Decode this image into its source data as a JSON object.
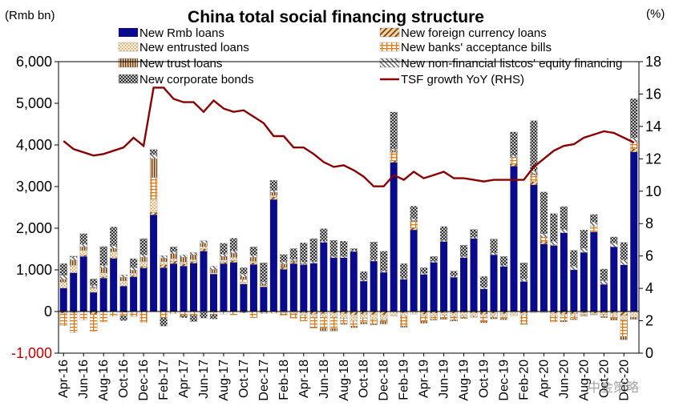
{
  "chart_data": {
    "type": "bar",
    "title": "China total social financing structure",
    "left_unit": "(Rmb bn)",
    "right_unit": "(%)",
    "ylim": [
      -1000,
      6000
    ],
    "y2lim": [
      0,
      18
    ],
    "yticks": [
      "6,000",
      "5,000",
      "4,000",
      "3,000",
      "2,000",
      "1,000",
      "0",
      "-1,000"
    ],
    "y2ticks": [
      "18",
      "16",
      "14",
      "12",
      "10",
      "8",
      "6",
      "4",
      "2",
      "0"
    ],
    "x_labels": [
      "Apr-16",
      "Jun-16",
      "Aug-16",
      "Oct-16",
      "Dec-16",
      "Feb-17",
      "Apr-17",
      "Jun-17",
      "Aug-17",
      "Oct-17",
      "Dec-17",
      "Feb-18",
      "Apr-18",
      "Jun-18",
      "Aug-18",
      "Oct-18",
      "Dec-18",
      "Feb-19",
      "Apr-19",
      "Jun-19",
      "Aug-19",
      "Oct-19",
      "Dec-19",
      "Feb-20",
      "Apr-20",
      "Jun-20",
      "Aug-20",
      "Oct-20",
      "Dec-20"
    ],
    "series": [
      {
        "name": "New Rmb loans",
        "color": "#0a0a8c",
        "pattern": "solid",
        "values": [
          560,
          930,
          1320,
          460,
          800,
          1270,
          610,
          830,
          1040,
          2320,
          1050,
          1150,
          1090,
          1160,
          1450,
          900,
          1150,
          1180,
          660,
          1130,
          590,
          2690,
          1010,
          1150,
          1120,
          1160,
          1660,
          1290,
          1290,
          1440,
          730,
          1210,
          940,
          3580,
          770,
          1960,
          890,
          1180,
          1680,
          820,
          1290,
          1750,
          540,
          1360,
          1080,
          3490,
          720,
          3040,
          1620,
          1580,
          1890,
          1000,
          1420,
          1910,
          650,
          1550,
          1120,
          3830
        ]
      },
      {
        "name": "New foreign currency loans",
        "color": "#8b4a1a",
        "pattern": "diag",
        "values": [
          -40,
          -30,
          30,
          -60,
          30,
          20,
          -20,
          30,
          40,
          60,
          70,
          60,
          50,
          40,
          50,
          -20,
          30,
          40,
          -30,
          40,
          -20,
          60,
          50,
          40,
          -30,
          -60,
          -50,
          -40,
          -50,
          -80,
          -60,
          -70,
          -80,
          40,
          -30,
          50,
          -60,
          -40,
          -30,
          -40,
          -20,
          -30,
          -60,
          -40,
          -50,
          50,
          -40,
          80,
          60,
          -40,
          -60,
          -50,
          -30,
          -40,
          -30,
          -40,
          -90,
          80
        ]
      },
      {
        "name": "New entrusted loans",
        "color": "#c9a06a",
        "pattern": "dots",
        "values": [
          150,
          180,
          120,
          100,
          100,
          150,
          130,
          60,
          120,
          320,
          80,
          60,
          50,
          50,
          60,
          30,
          60,
          80,
          50,
          40,
          30,
          40,
          -30,
          -40,
          -60,
          -80,
          -90,
          -100,
          -120,
          -150,
          -110,
          -120,
          -100,
          -110,
          -70,
          -60,
          -50,
          -70,
          -60,
          -80,
          -90,
          -70,
          -80,
          -60,
          -90,
          -100,
          -40,
          -30,
          -30,
          -60,
          -40,
          -50,
          -40,
          -30,
          -40,
          -60,
          -110,
          -140
        ]
      },
      {
        "name": "New banks' acceptance bills",
        "color": "#e07a10",
        "pattern": "hgrid",
        "values": [
          -300,
          -480,
          -210,
          -420,
          -250,
          -110,
          -80,
          -120,
          -260,
          520,
          -150,
          -50,
          -90,
          -90,
          -20,
          -50,
          -60,
          -80,
          60,
          -150,
          -30,
          -40,
          -60,
          -120,
          -140,
          -250,
          -260,
          -270,
          -110,
          -120,
          -90,
          -110,
          -60,
          200,
          -250,
          150,
          -130,
          -80,
          -70,
          -80,
          -40,
          -30,
          -100,
          -40,
          -30,
          150,
          -220,
          160,
          100,
          -150,
          -120,
          -80,
          -30,
          140,
          -50,
          -60,
          -400,
          170
        ]
      },
      {
        "name": "New trust loans",
        "color": "#6b4020",
        "pattern": "vlines",
        "values": [
          60,
          120,
          80,
          20,
          120,
          70,
          80,
          70,
          100,
          450,
          80,
          120,
          110,
          110,
          80,
          80,
          80,
          100,
          60,
          90,
          50,
          70,
          80,
          30,
          30,
          -10,
          -70,
          -60,
          -30,
          -40,
          -40,
          -20,
          -60,
          50,
          -30,
          30,
          -40,
          -20,
          -30,
          -30,
          -20,
          -10,
          -30,
          -40,
          -30,
          20,
          -10,
          30,
          10,
          20,
          -30,
          -20,
          -10,
          -10,
          -30,
          -50,
          -80,
          -50
        ]
      },
      {
        "name": "New non-financial listcos' equity financing",
        "color": "#666666",
        "pattern": "diag2",
        "values": [
          100,
          80,
          70,
          50,
          60,
          70,
          60,
          60,
          60,
          100,
          60,
          50,
          60,
          60,
          60,
          80,
          60,
          60,
          70,
          50,
          40,
          50,
          60,
          40,
          40,
          40,
          30,
          30,
          30,
          30,
          30,
          30,
          40,
          40,
          30,
          40,
          30,
          30,
          30,
          30,
          30,
          30,
          40,
          50,
          30,
          40,
          60,
          70,
          80,
          90,
          80,
          90,
          100,
          100,
          90,
          100,
          120,
          90
        ]
      },
      {
        "name": "New corporate bonds",
        "color": "#222222",
        "pattern": "xhatch",
        "values": [
          280,
          20,
          250,
          150,
          450,
          450,
          -120,
          220,
          390,
          120,
          -200,
          110,
          -60,
          -150,
          -140,
          -110,
          260,
          300,
          150,
          200,
          460,
          240,
          170,
          250,
          460,
          550,
          300,
          390,
          370,
          40,
          200,
          430,
          470,
          880,
          350,
          300,
          130,
          110,
          330,
          120,
          270,
          190,
          260,
          330,
          210,
          560,
          390,
          1200,
          1000,
          660,
          550,
          380,
          440,
          180,
          280,
          140,
          420,
          940
        ]
      },
      {
        "name": "TSF growth YoY (RHS)",
        "color": "#8b0000",
        "pattern": "line",
        "axis": "right",
        "values": [
          13.1,
          12.6,
          12.4,
          12.2,
          12.3,
          12.5,
          12.7,
          13.3,
          12.8,
          16.4,
          16.4,
          15.7,
          15.5,
          15.5,
          14.9,
          15.6,
          15.1,
          14.9,
          15.0,
          14.6,
          14.2,
          13.4,
          13.4,
          12.7,
          12.7,
          12.3,
          11.8,
          11.5,
          11.6,
          11.3,
          10.9,
          10.3,
          10.3,
          11.0,
          10.7,
          11.2,
          10.8,
          11.0,
          11.2,
          10.8,
          10.8,
          10.7,
          10.6,
          10.7,
          10.7,
          10.7,
          10.7,
          11.5,
          12.0,
          12.5,
          12.8,
          12.9,
          13.3,
          13.5,
          13.7,
          13.6,
          13.3,
          13.0
        ]
      }
    ]
  },
  "watermark": "中金策略"
}
